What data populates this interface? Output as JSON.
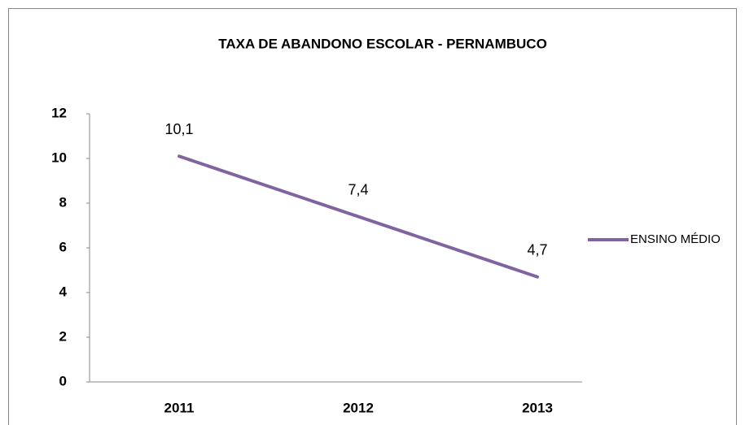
{
  "chart_data": {
    "type": "line",
    "title": "TAXA DE ABANDONO ESCOLAR - PERNAMBUCO",
    "categories": [
      "2011",
      "2012",
      "2013"
    ],
    "series": [
      {
        "name": "ENSINO MÉDIO",
        "color": "#8064a2",
        "values": [
          10.1,
          7.4,
          4.7
        ],
        "value_labels": [
          "10,1",
          "7,4",
          "4,7"
        ]
      }
    ],
    "ylim": [
      0,
      12
    ],
    "yticks": [
      0,
      2,
      4,
      6,
      8,
      10,
      12
    ],
    "grid": false,
    "legend": "right"
  }
}
